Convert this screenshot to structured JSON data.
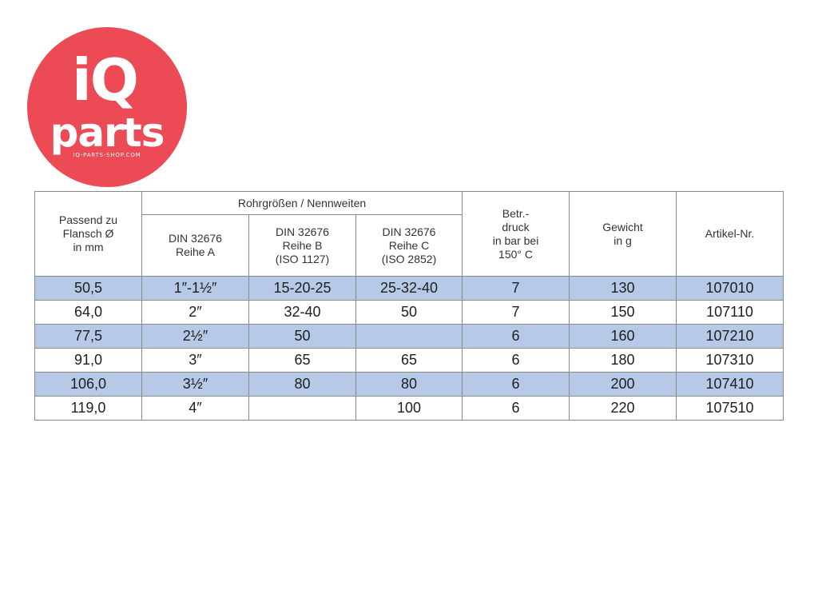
{
  "logo": {
    "line1": "iQ",
    "line2": "parts",
    "url": "IQ-PARTS-SHOP.COM",
    "color": "#ec4a55"
  },
  "table": {
    "header": {
      "col_flansch": [
        "Passend zu",
        "Flansch Ø",
        "in mm"
      ],
      "group_label": "Rohrgrößen / Nennweiten",
      "col_reihe_a": [
        "DIN 32676",
        "Reihe A"
      ],
      "col_reihe_b": [
        "DIN 32676",
        "Reihe B",
        "(ISO 1127)"
      ],
      "col_reihe_c": [
        "DIN 32676",
        "Reihe C",
        "(ISO 2852)"
      ],
      "col_druck": [
        "Betr.-",
        "druck",
        "in bar bei",
        "150° C"
      ],
      "col_gewicht": [
        "Gewicht",
        "in g"
      ],
      "col_artikel": [
        "Artikel-Nr."
      ]
    },
    "rows": [
      {
        "flansch": "50,5",
        "reihe_a": "1″-1½″",
        "reihe_b": "15-20-25",
        "reihe_c": "25-32-40",
        "druck": "7",
        "gewicht": "130",
        "artikel": "107010"
      },
      {
        "flansch": "64,0",
        "reihe_a": "2″",
        "reihe_b": "32-40",
        "reihe_c": "50",
        "druck": "7",
        "gewicht": "150",
        "artikel": "107110"
      },
      {
        "flansch": "77,5",
        "reihe_a": "2½″",
        "reihe_b": "50",
        "reihe_c": "",
        "druck": "6",
        "gewicht": "160",
        "artikel": "107210"
      },
      {
        "flansch": "91,0",
        "reihe_a": "3″",
        "reihe_b": "65",
        "reihe_c": "65",
        "druck": "6",
        "gewicht": "180",
        "artikel": "107310"
      },
      {
        "flansch": "106,0",
        "reihe_a": "3½″",
        "reihe_b": "80",
        "reihe_c": "80",
        "druck": "6",
        "gewicht": "200",
        "artikel": "107410"
      },
      {
        "flansch": "119,0",
        "reihe_a": "4″",
        "reihe_b": "",
        "reihe_c": "100",
        "druck": "6",
        "gewicht": "220",
        "artikel": "107510"
      }
    ],
    "alt_row_color": "#b6c9e6"
  }
}
